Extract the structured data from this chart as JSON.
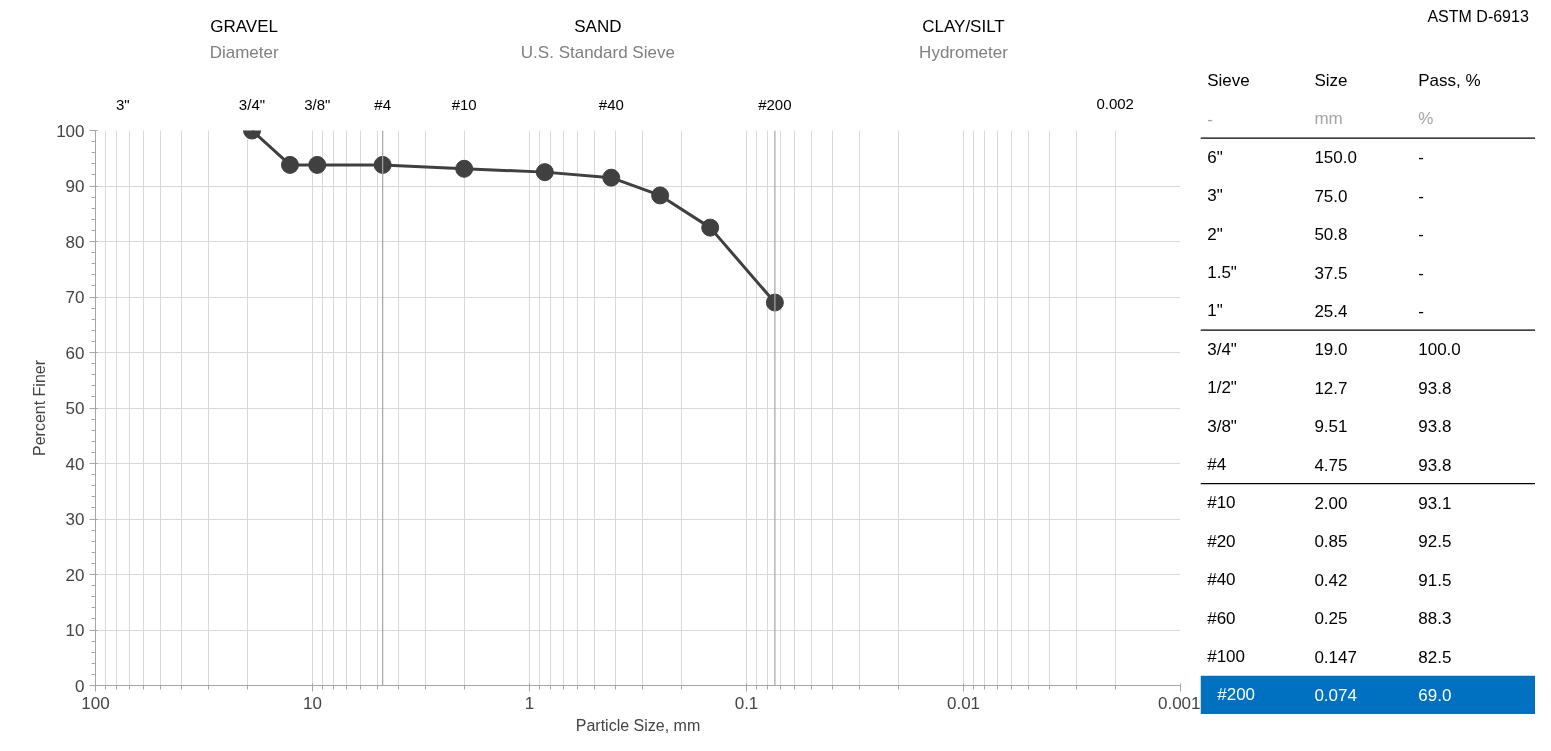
{
  "chart_data": {
    "type": "line",
    "xlabel": "Particle Size, mm",
    "ylabel": "Percent Finer",
    "log": "x",
    "grid": true,
    "marker": "circle",
    "line_style": "solid",
    "xlim": [
      100,
      0.001
    ],
    "xticks": [
      {
        "value": 100,
        "label": "100"
      },
      {
        "value": 10,
        "label": "10"
      },
      {
        "value": 1,
        "label": "1"
      },
      {
        "value": 0.1,
        "label": "0.1"
      },
      {
        "value": 0.01,
        "label": "0.01"
      },
      {
        "value": 0.001,
        "label": "0.001"
      }
    ],
    "ylim": [
      0,
      100
    ],
    "yticks": [
      0,
      10,
      20,
      30,
      40,
      50,
      60,
      70,
      80,
      90,
      100
    ],
    "ref_lines": [
      {
        "axis": "x",
        "value": 4.75,
        "color": "#a6a6a6"
      },
      {
        "axis": "x",
        "value": 0.074,
        "color": "#a6a6a6"
      }
    ],
    "series": [
      {
        "color": "#404040",
        "x": [
          19.0,
          12.7,
          9.51,
          4.75,
          2.0,
          0.85,
          0.42,
          0.25,
          0.147,
          0.074
        ],
        "values": [
          100.0,
          93.8,
          93.8,
          93.8,
          93.1,
          92.5,
          91.5,
          88.3,
          82.5,
          69.0
        ]
      }
    ],
    "annotations": [
      "GRAVEL",
      "Diameter",
      "SAND",
      "U.S. Standard Sieve",
      "CLAY/SILT",
      "Hydrometer",
      "ASTM D-6913",
      "Sieve",
      "Size",
      "Pass, %",
      "-",
      "mm",
      "%",
      "6\"",
      "150.0",
      "-",
      "3\"",
      "75.0",
      "-",
      "2\"",
      "50.8",
      "-",
      "1.5\"",
      "37.5",
      "-",
      "1\"",
      "25.4",
      "-",
      "3/4\"",
      "19.0",
      "100.0",
      "1/2\"",
      "12.7",
      "93.8",
      "3/8\"",
      "9.51",
      "93.8",
      "#4",
      "4.75",
      "93.8",
      "#10",
      "2.00",
      "93.1",
      "#20",
      "0.85",
      "92.5",
      "#40",
      "0.42",
      "91.5",
      "#60",
      "0.25",
      "88.3",
      "#100",
      "0.147",
      "82.5",
      "#200",
      "0.074",
      "69.0",
      "3\"",
      "3/4\"",
      "3/8\"",
      "#4",
      "#10",
      "#40",
      "#200",
      "0.002"
    ]
  }
}
